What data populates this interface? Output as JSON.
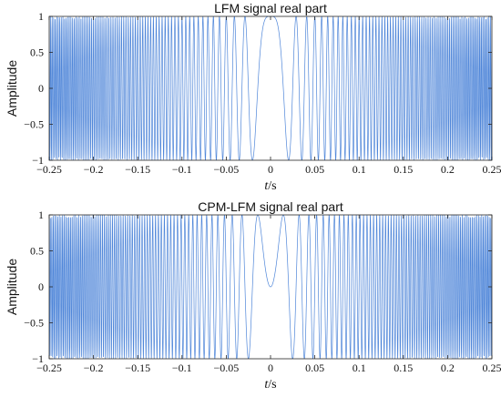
{
  "chart_data": [
    {
      "type": "line",
      "title": "LFM signal real part",
      "xlabel_italic": "t",
      "xlabel_unit": "/s",
      "ylabel": "Amplitude",
      "xlim": [
        -0.25,
        0.25
      ],
      "ylim": [
        -1,
        1
      ],
      "xticks": [
        -0.25,
        -0.2,
        -0.15,
        -0.1,
        -0.05,
        0,
        0.05,
        0.1,
        0.15,
        0.2,
        0.25
      ],
      "xtick_labels": [
        "−0.25",
        "−0.2",
        "−0.15",
        "−0.1",
        "−0.05",
        "0",
        "0.05",
        "0.1",
        "0.15",
        "0.2",
        "0.25"
      ],
      "yticks": [
        -1,
        -0.5,
        0,
        0.5,
        1
      ],
      "ytick_labels": [
        "−1",
        "−0.5",
        "0",
        "0.5",
        "1"
      ],
      "grid": false,
      "series": [
        {
          "function": "cos(pi*k*t^2)",
          "chirp_rate_k": 2400,
          "sample_count": 3000,
          "color": "#4f86d9"
        }
      ]
    },
    {
      "type": "line",
      "title": "CPM-LFM signal real part",
      "xlabel_italic": "t",
      "xlabel_unit": "/s",
      "ylabel": "Amplitude",
      "xlim": [
        -0.25,
        0.25
      ],
      "ylim": [
        -1,
        1
      ],
      "xticks": [
        -0.25,
        -0.2,
        -0.15,
        -0.1,
        -0.05,
        0,
        0.05,
        0.1,
        0.15,
        0.2,
        0.25
      ],
      "xtick_labels": [
        "−0.25",
        "−0.2",
        "−0.15",
        "−0.1",
        "−0.05",
        "0",
        "0.05",
        "0.1",
        "0.15",
        "0.2",
        "0.25"
      ],
      "yticks": [
        -1,
        -0.5,
        0,
        0.5,
        1
      ],
      "ytick_labels": [
        "−1",
        "−0.5",
        "0",
        "0.5",
        "1"
      ],
      "grid": false,
      "series": [
        {
          "function": "sin(pi*k*t^2)",
          "chirp_rate_k": 2400,
          "sample_count": 3000,
          "color": "#4f86d9"
        }
      ]
    }
  ]
}
